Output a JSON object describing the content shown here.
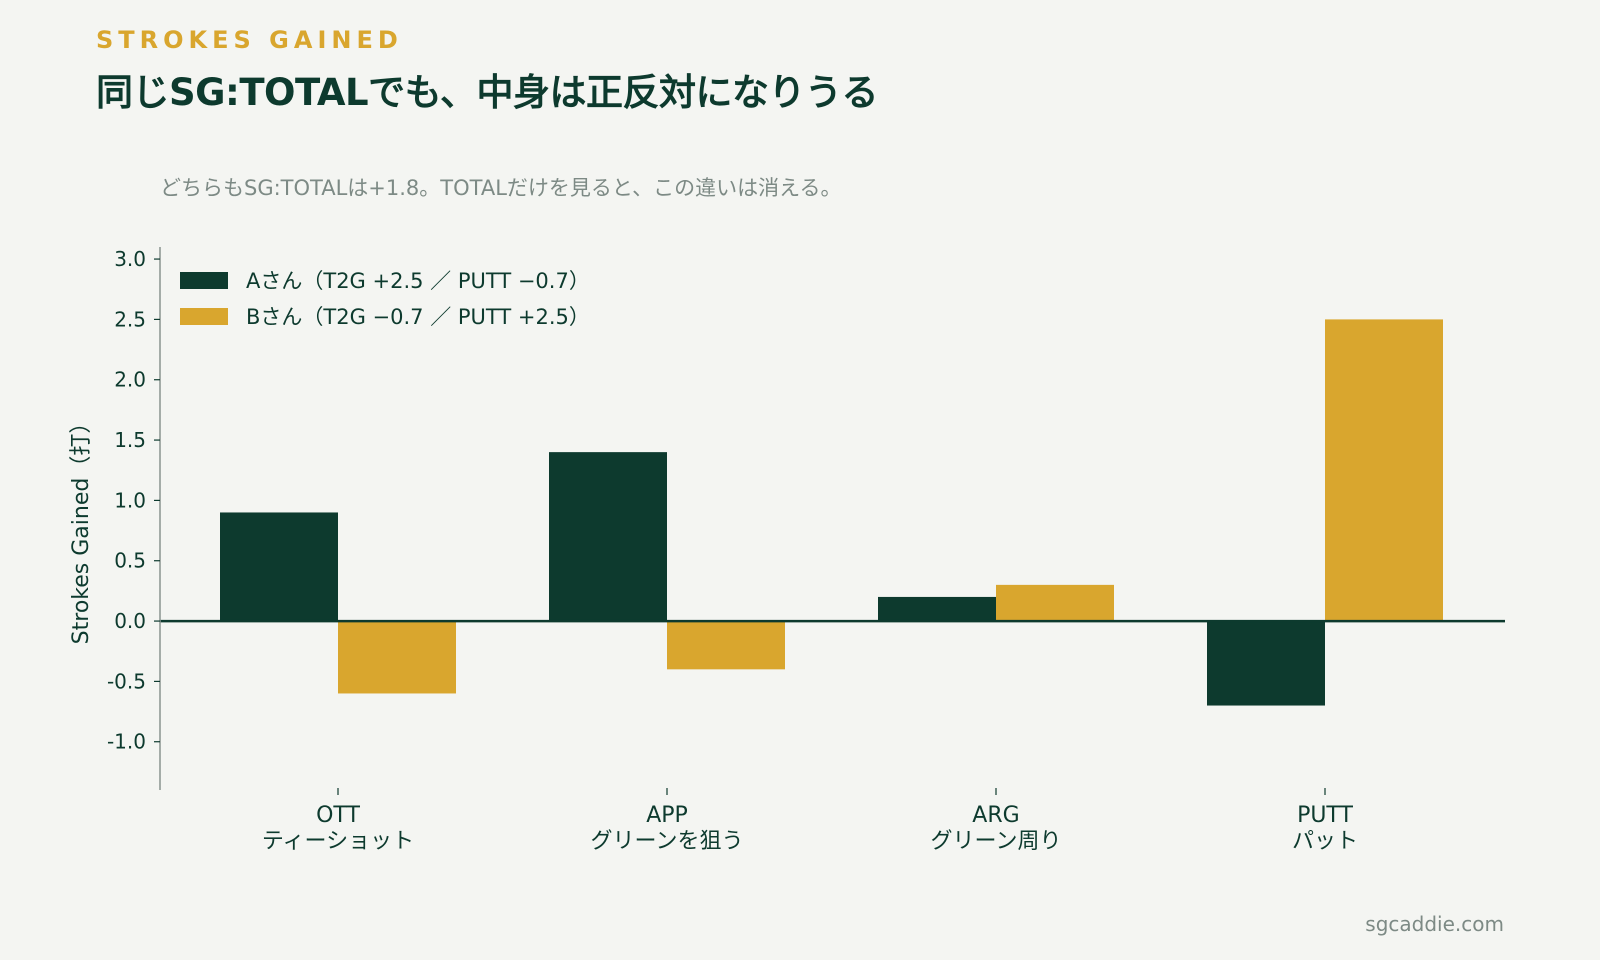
{
  "header": {
    "kicker": "STROKES GAINED",
    "title": "同じSG:TOTALでも、中身は正反対になりうる",
    "subtitle": "どちらもSG:TOTALは+1.8。TOTALだけを見ると、この違いは消える。"
  },
  "footer": {
    "source": "sgcaddie.com"
  },
  "colors": {
    "series_a": "#0d3a2e",
    "series_b": "#d9a62e",
    "axis": "#0d3a2e",
    "background": "#f4f5f2"
  },
  "chart_data": {
    "type": "bar",
    "ylabel": "Strokes Gained（打）",
    "xlabel": "",
    "ylim": [
      -1.4,
      3.1
    ],
    "yticks": [
      -1.0,
      -0.5,
      0.0,
      0.5,
      1.0,
      1.5,
      2.0,
      2.5,
      3.0
    ],
    "ytick_labels": [
      "-1.0",
      "-0.5",
      "0.0",
      "0.5",
      "1.0",
      "1.5",
      "2.0",
      "2.5",
      "3.0"
    ],
    "grid": false,
    "legend_position": "top-left",
    "categories": [
      {
        "code": "OTT",
        "label": "ティーショット"
      },
      {
        "code": "APP",
        "label": "グリーンを狙う"
      },
      {
        "code": "ARG",
        "label": "グリーン周り"
      },
      {
        "code": "PUTT",
        "label": "パット"
      }
    ],
    "series": [
      {
        "name": "Aさん（T2G +2.5 ／ PUTT −0.7）",
        "values": [
          0.9,
          1.4,
          0.2,
          -0.7
        ]
      },
      {
        "name": "Bさん（T2G −0.7 ／ PUTT +2.5）",
        "values": [
          -0.6,
          -0.4,
          0.3,
          2.5
        ]
      }
    ]
  }
}
